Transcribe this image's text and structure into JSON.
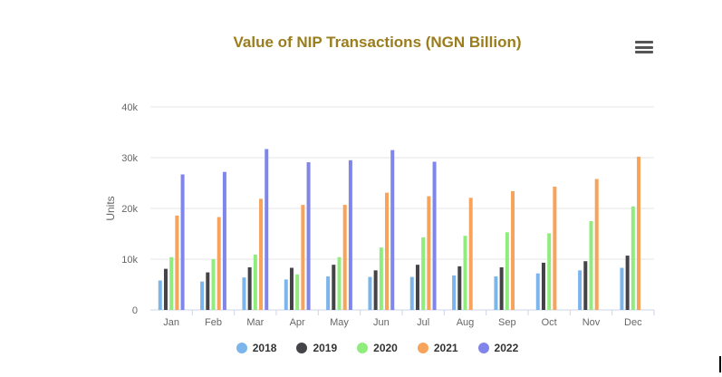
{
  "chart_data": {
    "type": "bar",
    "title": "Value of NIP Transactions (NGN Billion)",
    "ylabel": "Units",
    "xlabel": "",
    "ylim": [
      0,
      40000
    ],
    "yticks": [
      0,
      10000,
      20000,
      30000,
      40000
    ],
    "ytick_labels": [
      "0",
      "10k",
      "20k",
      "30k",
      "40k"
    ],
    "grid": true,
    "legend_position": "bottom",
    "categories": [
      "Jan",
      "Feb",
      "Mar",
      "Apr",
      "May",
      "Jun",
      "Jul",
      "Aug",
      "Sep",
      "Oct",
      "Nov",
      "Dec"
    ],
    "series": [
      {
        "name": "2018",
        "color": "#7cb5ec",
        "values": [
          5800,
          5600,
          6400,
          6000,
          6600,
          6500,
          6500,
          6800,
          6600,
          7200,
          7800,
          8300
        ]
      },
      {
        "name": "2019",
        "color": "#434348",
        "values": [
          8100,
          7400,
          8400,
          8300,
          8900,
          7800,
          8900,
          8600,
          8400,
          9300,
          9600,
          10700
        ]
      },
      {
        "name": "2020",
        "color": "#90ed7d",
        "values": [
          10400,
          10000,
          10900,
          7000,
          10400,
          12300,
          14300,
          14600,
          15300,
          15100,
          17500,
          20400
        ]
      },
      {
        "name": "2021",
        "color": "#f7a35c",
        "values": [
          18600,
          18300,
          21900,
          20700,
          20700,
          23100,
          22400,
          22100,
          23400,
          24300,
          25800,
          30200
        ]
      },
      {
        "name": "2022",
        "color": "#8085e9",
        "values": [
          26700,
          27200,
          31700,
          29100,
          29500,
          31500,
          29200,
          null,
          null,
          null,
          null,
          null
        ]
      }
    ]
  },
  "menu": {
    "icon": "hamburger-menu-icon"
  }
}
